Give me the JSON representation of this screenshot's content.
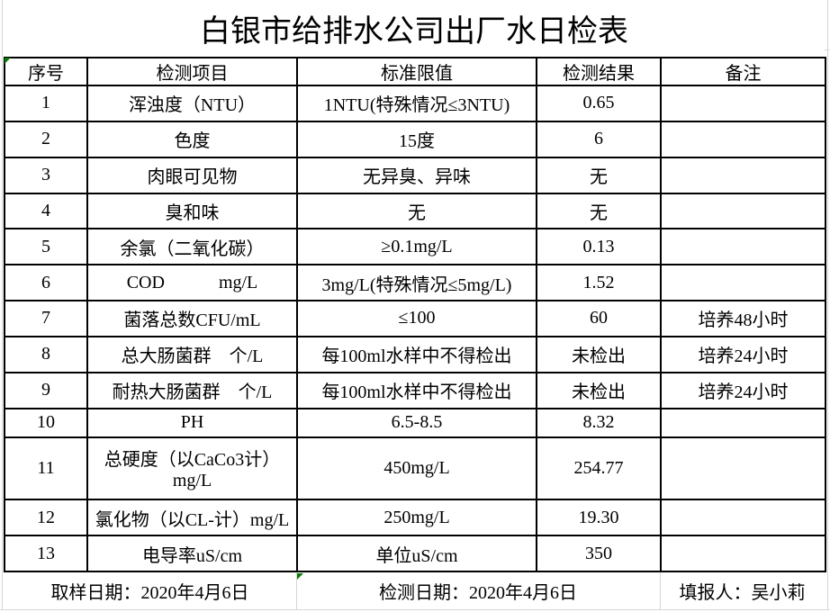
{
  "report": {
    "title": "白银市给排水公司出厂水日检表",
    "table": {
      "headers": [
        "序号",
        "检测项目",
        "标准限值",
        "检测结果",
        "备注"
      ],
      "rows": [
        [
          "1",
          "浑浊度（NTU）",
          "1NTU(特殊情况≤3NTU)",
          "0.65",
          ""
        ],
        [
          "2",
          "色度",
          "15度",
          "6",
          ""
        ],
        [
          "3",
          "肉眼可见物",
          "无异臭、异味",
          "无",
          ""
        ],
        [
          "4",
          "臭和味",
          "无",
          "无",
          ""
        ],
        [
          "5",
          "余氯（二氧化碳）",
          "≥0.1mg/L",
          "0.13",
          ""
        ],
        [
          "6",
          "COD            mg/L",
          "3mg/L(特殊情况≤5mg/L)",
          "1.52",
          ""
        ],
        [
          "7",
          "菌落总数CFU/mL",
          "≤100",
          "60",
          "培养48小时"
        ],
        [
          "8",
          "总大肠菌群　个/L",
          "每100ml水样中不得检出",
          "未检出",
          "培养24小时"
        ],
        [
          "9",
          "耐热大肠菌群　个/L",
          "每100ml水样中不得检出",
          "未检出",
          "培养24小时"
        ],
        [
          "10",
          "PH",
          "6.5-8.5",
          "8.32",
          ""
        ],
        [
          "11",
          "总硬度（以CaCo3计）mg/L",
          "450mg/L",
          "254.77",
          ""
        ],
        [
          "12",
          "氯化物（以CL-计）mg/L",
          "250mg/L",
          "19.30",
          ""
        ],
        [
          "13",
          "电导率uS/cm",
          "单位uS/cm",
          "350",
          ""
        ]
      ]
    },
    "footer": {
      "sample_date": "取样日期：2020年4月6日",
      "test_date": "检测日期：2020年4月6日",
      "reporter": "填报人：吴小莉"
    }
  },
  "colors": {
    "border": "#000000",
    "gridline": "#d6d6d6",
    "error_indicator_green": "#0a7a0a",
    "background": "#ffffff",
    "text": "#000000"
  }
}
